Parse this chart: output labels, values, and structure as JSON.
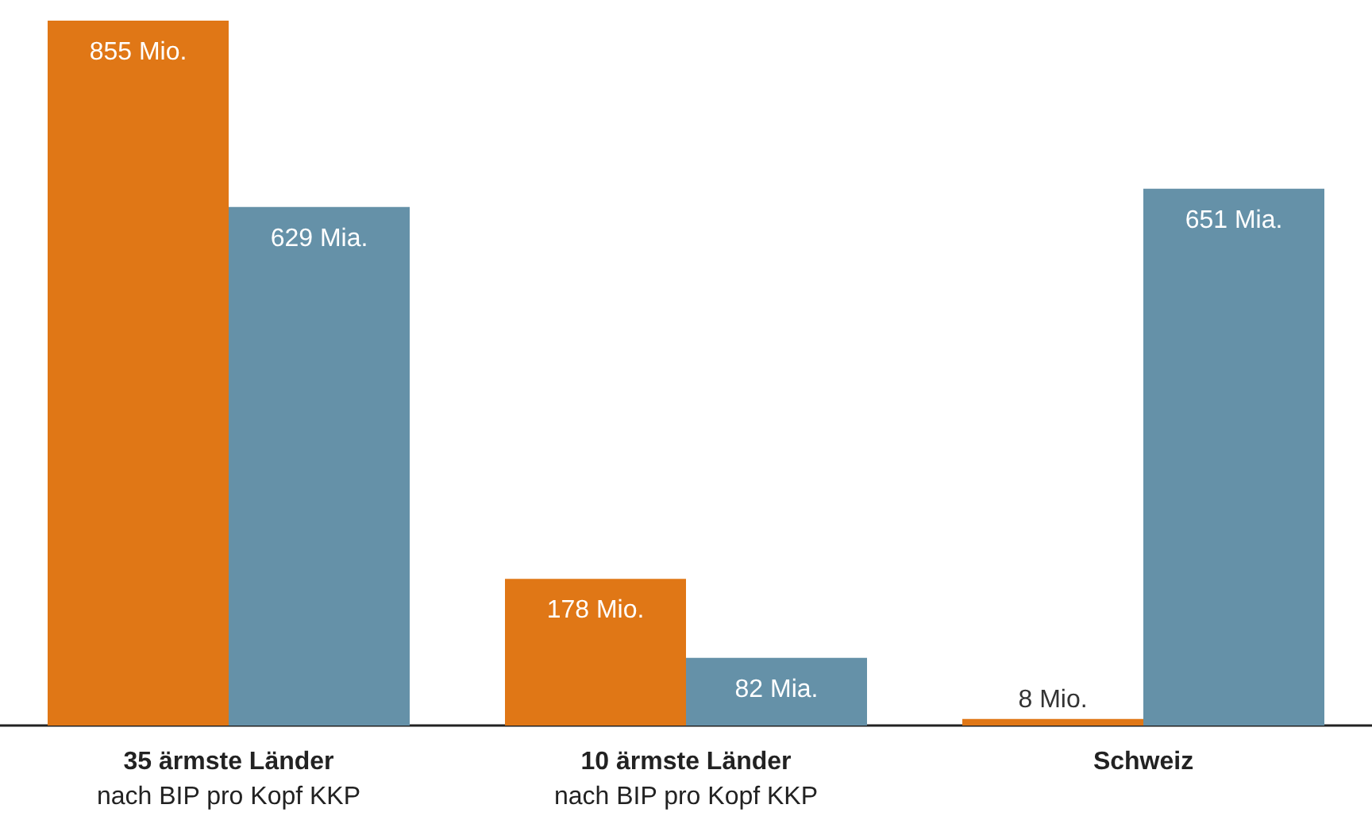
{
  "chart_data": {
    "type": "bar",
    "categories": [
      "35 ärmste Länder\nnach BIP pro Kopf KKP",
      "10 ärmste Länder\nnach BIP pro Kopf KKP",
      "Schweiz"
    ],
    "series": [
      {
        "color": "#e07716",
        "values": [
          855,
          178,
          8
        ],
        "value_labels": [
          "855 Mio.",
          "178 Mio.",
          "8 Mio."
        ]
      },
      {
        "color": "#6591a8",
        "values": [
          629,
          82,
          651
        ],
        "value_labels": [
          "629 Mia.",
          "82 Mia.",
          "651 Mia."
        ]
      }
    ]
  }
}
